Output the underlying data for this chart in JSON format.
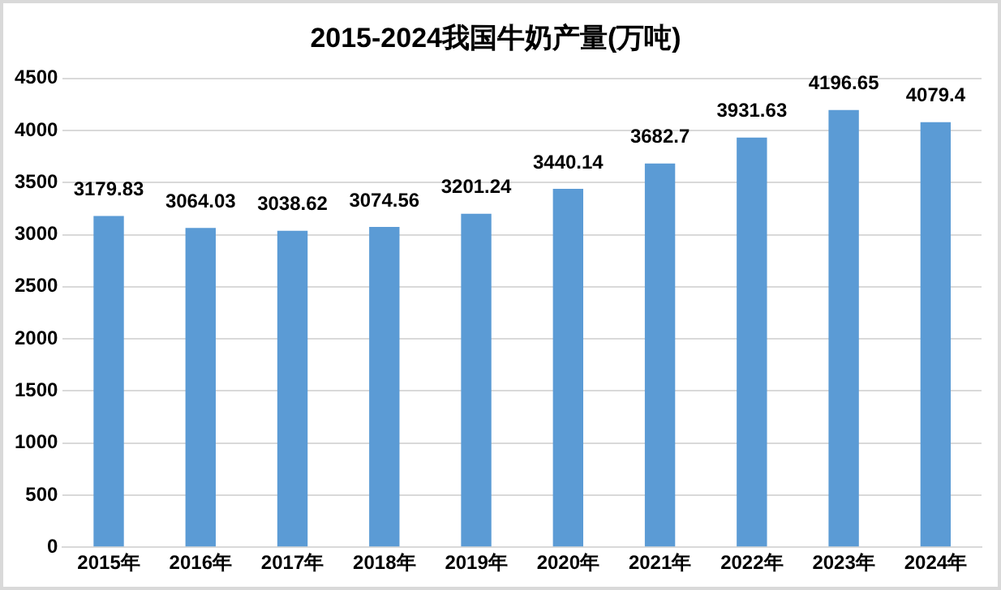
{
  "chart_data": {
    "type": "bar",
    "title": "2015-2024我国牛奶产量(万吨)",
    "categories": [
      "2015年",
      "2016年",
      "2017年",
      "2018年",
      "2019年",
      "2020年",
      "2021年",
      "2022年",
      "2023年",
      "2024年"
    ],
    "values": [
      3179.83,
      3064.03,
      3038.62,
      3074.56,
      3201.24,
      3440.14,
      3682.7,
      3931.63,
      4196.65,
      4079.4
    ],
    "color": "#5b9bd5",
    "ylim": [
      0,
      4500
    ],
    "yticks": [
      0,
      500,
      1000,
      1500,
      2000,
      2500,
      3000,
      3500,
      4000,
      4500
    ],
    "grid": "y",
    "data_labels": true
  }
}
